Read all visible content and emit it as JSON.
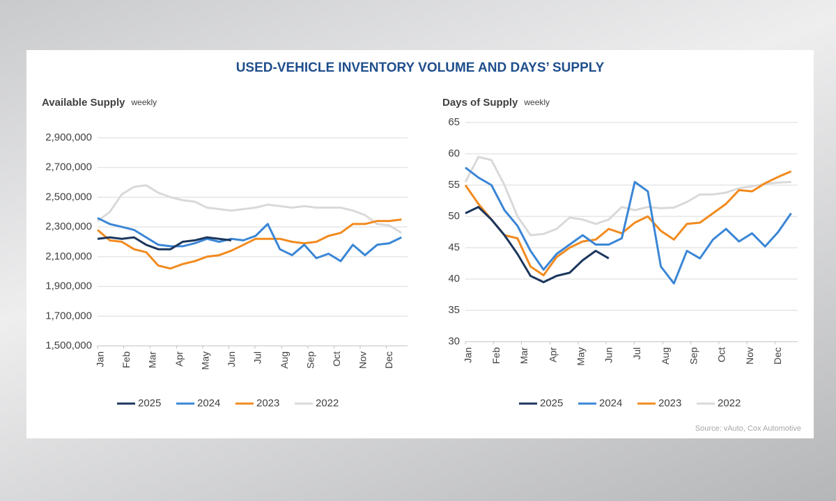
{
  "title": "USED-VEHICLE INVENTORY VOLUME AND DAYS’ SUPPLY",
  "source": "Source: vAuto, Cox Automotive",
  "chart_data": [
    {
      "type": "line",
      "title": "Available Supply",
      "subtitle": "weekly",
      "x": [
        1,
        3,
        5,
        7,
        9,
        11,
        13,
        15,
        17,
        19,
        21,
        23,
        25,
        27,
        29,
        31,
        33,
        35,
        37,
        39,
        41,
        43,
        45,
        47,
        49,
        51
      ],
      "xlim": [
        1,
        52
      ],
      "xticks": [
        {
          "value": 1,
          "label": "Jan"
        },
        {
          "value": 5.3,
          "label": "Feb"
        },
        {
          "value": 9.6,
          "label": "Mar"
        },
        {
          "value": 14,
          "label": "Apr"
        },
        {
          "value": 18.3,
          "label": "May"
        },
        {
          "value": 22.6,
          "label": "Jun"
        },
        {
          "value": 26.9,
          "label": "Jul"
        },
        {
          "value": 31.3,
          "label": "Aug"
        },
        {
          "value": 35.6,
          "label": "Sep"
        },
        {
          "value": 39.9,
          "label": "Oct"
        },
        {
          "value": 44.2,
          "label": "Nov"
        },
        {
          "value": 48.5,
          "label": "Dec"
        }
      ],
      "ylim": [
        1500000,
        2900000
      ],
      "yticks": [
        {
          "value": 1500000,
          "label": "1,500,000"
        },
        {
          "value": 1700000,
          "label": "1,700,000"
        },
        {
          "value": 1900000,
          "label": "1,900,000"
        },
        {
          "value": 2100000,
          "label": "2,100,000"
        },
        {
          "value": 2300000,
          "label": "2,300,000"
        },
        {
          "value": 2500000,
          "label": "2,500,000"
        },
        {
          "value": 2700000,
          "label": "2,700,000"
        },
        {
          "value": 2900000,
          "label": "2,900,000"
        }
      ],
      "grid": true,
      "series": [
        {
          "name": "2025",
          "color": "#1b365d",
          "values": [
            2220000,
            2230000,
            2220000,
            2230000,
            2180000,
            2150000,
            2150000,
            2200000,
            2210000,
            2230000,
            2220000,
            2210000,
            null,
            null,
            null,
            null,
            null,
            null,
            null,
            null,
            null,
            null,
            null,
            null,
            null,
            null
          ]
        },
        {
          "name": "2024",
          "color": "#3a86d6",
          "values": [
            2360000,
            2320000,
            2300000,
            2280000,
            2230000,
            2180000,
            2170000,
            2170000,
            2190000,
            2220000,
            2200000,
            2220000,
            2210000,
            2240000,
            2320000,
            2150000,
            2110000,
            2180000,
            2090000,
            2120000,
            2070000,
            2180000,
            2110000,
            2180000,
            2190000,
            2230000
          ]
        },
        {
          "name": "2023",
          "color": "#f28a1e",
          "values": [
            2280000,
            2210000,
            2200000,
            2150000,
            2130000,
            2040000,
            2020000,
            2050000,
            2070000,
            2100000,
            2110000,
            2140000,
            2180000,
            2220000,
            2220000,
            2220000,
            2200000,
            2190000,
            2200000,
            2240000,
            2260000,
            2320000,
            2320000,
            2340000,
            2340000,
            2350000
          ]
        },
        {
          "name": "2022",
          "color": "#d9d9d9",
          "values": [
            2340000,
            2400000,
            2520000,
            2570000,
            2580000,
            2530000,
            2500000,
            2480000,
            2470000,
            2430000,
            2420000,
            2410000,
            2420000,
            2430000,
            2450000,
            2440000,
            2430000,
            2440000,
            2430000,
            2430000,
            2430000,
            2410000,
            2380000,
            2320000,
            2310000,
            2260000
          ]
        }
      ]
    },
    {
      "type": "line",
      "title": "Days of Supply",
      "subtitle": "weekly",
      "x": [
        1,
        3,
        5,
        7,
        9,
        11,
        13,
        15,
        17,
        19,
        21,
        23,
        25,
        27,
        29,
        31,
        33,
        35,
        37,
        39,
        41,
        43,
        45,
        47,
        49,
        51
      ],
      "xlim": [
        1,
        52
      ],
      "xticks": [
        {
          "value": 1,
          "label": "Jan"
        },
        {
          "value": 5.3,
          "label": "Feb"
        },
        {
          "value": 9.6,
          "label": "Mar"
        },
        {
          "value": 14,
          "label": "Apr"
        },
        {
          "value": 18.3,
          "label": "May"
        },
        {
          "value": 22.6,
          "label": "Jun"
        },
        {
          "value": 26.9,
          "label": "Jul"
        },
        {
          "value": 31.3,
          "label": "Aug"
        },
        {
          "value": 35.6,
          "label": "Sep"
        },
        {
          "value": 39.9,
          "label": "Oct"
        },
        {
          "value": 44.2,
          "label": "Nov"
        },
        {
          "value": 48.5,
          "label": "Dec"
        }
      ],
      "ylim": [
        30,
        65
      ],
      "yticks": [
        30,
        35,
        40,
        45,
        50,
        55,
        60,
        65
      ],
      "grid": true,
      "series": [
        {
          "name": "2025",
          "color": "#1b365d",
          "values": [
            50.5,
            51.5,
            49.5,
            47,
            44,
            40.5,
            39.5,
            40.5,
            41,
            43,
            44.5,
            43.3,
            null,
            null,
            null,
            null,
            null,
            null,
            null,
            null,
            null,
            null,
            null,
            null,
            null,
            null
          ]
        },
        {
          "name": "2024",
          "color": "#3a86d6",
          "values": [
            57.8,
            56.2,
            55,
            51,
            48.5,
            44.5,
            41.5,
            44,
            45.5,
            47,
            45.5,
            45.5,
            46.5,
            55.5,
            54,
            42,
            39.3,
            44.5,
            43.3,
            46.3,
            48,
            46,
            47.3,
            45.2,
            47.5,
            50.5
          ]
        },
        {
          "name": "2023",
          "color": "#f28a1e",
          "values": [
            55,
            52,
            49.5,
            47,
            46.5,
            42,
            40.6,
            43.5,
            45,
            46,
            46.3,
            48,
            47.3,
            49,
            50,
            47.7,
            46.3,
            48.8,
            49,
            50.5,
            52,
            54.2,
            54,
            55.3,
            56.3,
            57.2
          ]
        },
        {
          "name": "2022",
          "color": "#d9d9d9",
          "values": [
            55.5,
            59.5,
            59,
            55,
            50,
            47,
            47.2,
            48,
            49.8,
            49.5,
            48.8,
            49.5,
            51.5,
            51,
            51.5,
            51.3,
            51.4,
            52.3,
            53.5,
            53.5,
            53.8,
            54.5,
            54.8,
            55.2,
            55.4,
            55.5
          ]
        }
      ]
    }
  ]
}
